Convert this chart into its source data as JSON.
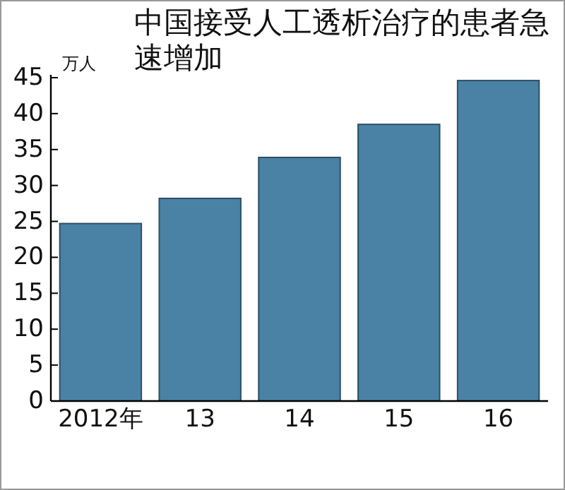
{
  "chart_data": {
    "type": "bar",
    "title": "中国接受人工透析治疗的患者急速增加",
    "ylabel": "万人",
    "categories": [
      "2012年",
      "13",
      "14",
      "15",
      "16"
    ],
    "values": [
      24.7,
      28.2,
      33.9,
      38.5,
      44.6
    ],
    "color": "#4a82a6",
    "ylim": [
      0,
      45
    ],
    "yticks": [
      0,
      5,
      10,
      15,
      20,
      25,
      30,
      35,
      40,
      45
    ],
    "grid": false
  }
}
